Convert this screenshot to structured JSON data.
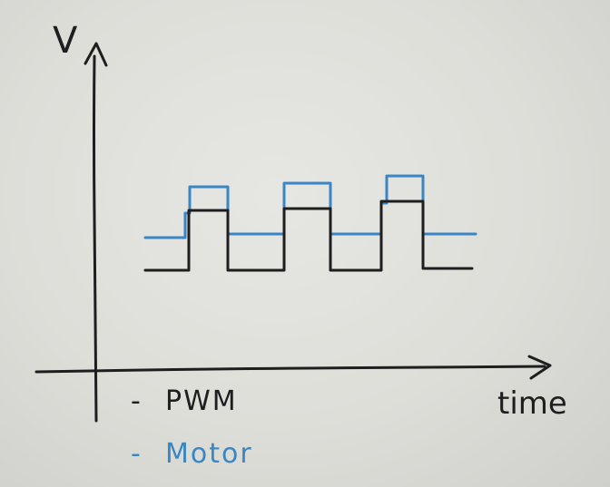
{
  "diagram": {
    "y_axis_label": "V",
    "x_axis_label": "time",
    "legend": [
      {
        "dash": "-",
        "label": "PWM",
        "color": "#1e1e1e"
      },
      {
        "dash": "-",
        "label": "Motor",
        "color": "#3a86c4"
      }
    ],
    "colors": {
      "board": "#dcdcd9",
      "ink_black": "#1e1e1e",
      "ink_blue": "#3a86c4"
    },
    "signals": {
      "pwm_levels": [
        "low",
        "high",
        "low",
        "high",
        "low",
        "high",
        "low"
      ],
      "motor_levels": [
        "low",
        "high",
        "low",
        "high",
        "low",
        "high",
        "low"
      ],
      "pulse_count": 3
    }
  }
}
